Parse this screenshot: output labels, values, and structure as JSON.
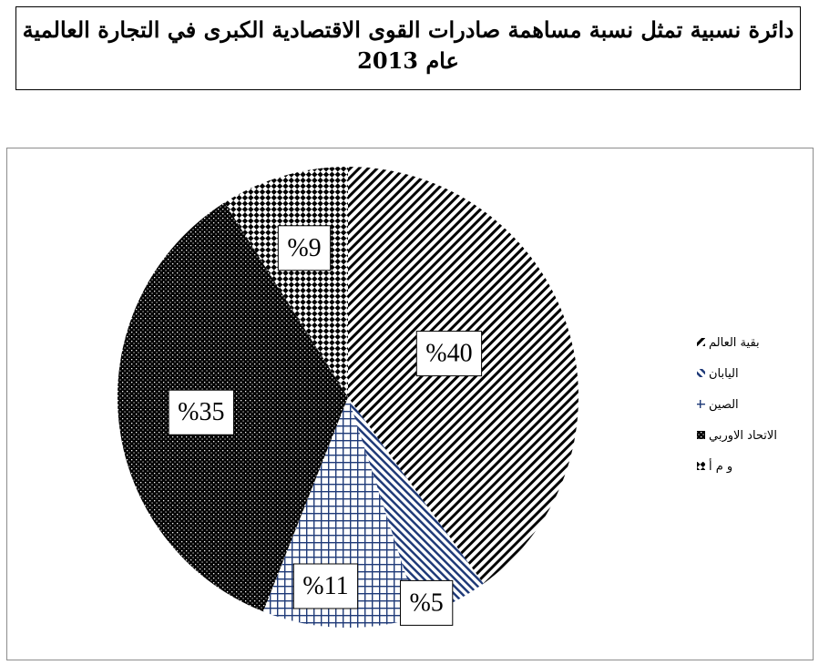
{
  "title": {
    "line1": "دائرة نسبية تمثل نسبة مساهمة صادرات القوى الاقتصادية الكبرى في التجارة العالمية",
    "line2": "عام 2013"
  },
  "chart_data": {
    "type": "pie",
    "title": "دائرة نسبية تمثل نسبة مساهمة صادرات القوى الاقتصادية الكبرى في التجارة العالمية عام 2013",
    "legend_position": "right",
    "slices": [
      {
        "name": "بقية العالم",
        "value": 40,
        "label": "%40",
        "pattern": "diag-fwd"
      },
      {
        "name": "اليابان",
        "value": 5,
        "label": "%5",
        "pattern": "diag-back"
      },
      {
        "name": "الصين",
        "value": 11,
        "label": "%11",
        "pattern": "grid"
      },
      {
        "name": "الاتحاد الاوربي",
        "value": 35,
        "label": "%35",
        "pattern": "dots"
      },
      {
        "name": "و م أ",
        "value": 9,
        "label": "%9",
        "pattern": "checker"
      }
    ]
  }
}
